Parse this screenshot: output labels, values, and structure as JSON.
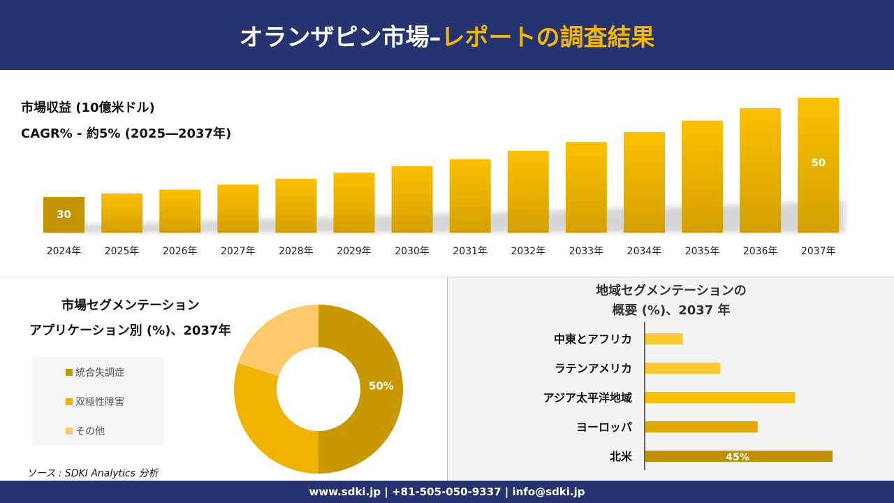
{
  "header": {
    "title_main": "オランザピン市場–",
    "title_accent": "レポートの調査結果"
  },
  "revenue": {
    "title": "市場収益 (10億米ドル)",
    "cagr": "CAGR% - 約5% (2025―2037年)"
  },
  "chart_data": [
    {
      "type": "bar",
      "title": "市場収益 (10億米ドル)",
      "categories": [
        "2024年",
        "2025年",
        "2026年",
        "2027年",
        "2028年",
        "2029年",
        "2030年",
        "2031年",
        "2032年",
        "2033年",
        "2034年",
        "2035年",
        "2036年",
        "2037年"
      ],
      "values": [
        30,
        30.7,
        31.5,
        32.5,
        33.7,
        34.9,
        36.2,
        37.6,
        39.3,
        41.1,
        43.1,
        45.4,
        47.9,
        50
      ],
      "data_labels": {
        "0": "30",
        "13": "50"
      },
      "colors": {
        "first": "#c49400",
        "bars": "#f5b800",
        "bottom": "#d4a000"
      }
    },
    {
      "type": "pie",
      "title": "市場セグメンテーション アプリケーション別 (%)、2037年",
      "labels": [
        "統合失調症",
        "双極性障害",
        "その他"
      ],
      "values": [
        50,
        30,
        20
      ],
      "colors": [
        "#c79800",
        "#f0b400",
        "#fcc96a"
      ],
      "data_labels": [
        "50%",
        "",
        ""
      ],
      "legend": "left"
    },
    {
      "type": "bar",
      "orientation": "horizontal",
      "title": "地域セグメンテーションの 概要 (%)、2037 年",
      "categories": [
        "中東とアフリカ",
        "ラテンアメリカ",
        "アジア太平洋地域",
        "ヨーロッパ",
        "北米"
      ],
      "values": [
        9,
        18,
        36,
        27,
        45
      ],
      "data_labels": [
        "",
        "",
        "",
        "",
        "45%"
      ],
      "colors": [
        "#fcc830",
        "#fcc830",
        "#fcbf00",
        "#e0a800",
        "#c09000"
      ]
    }
  ],
  "segment": {
    "title1": "市場セグメンテーション",
    "title2": "アプリケーション別 (%)、2037年"
  },
  "region": {
    "title1": "地域セグメンテーションの",
    "title2": "概要 (%)、2037 年"
  },
  "source": "ソース : SDKI Analytics 分析",
  "footer": "www.sdki.jp | +81-505-050-9337 | info@sdki.jp"
}
